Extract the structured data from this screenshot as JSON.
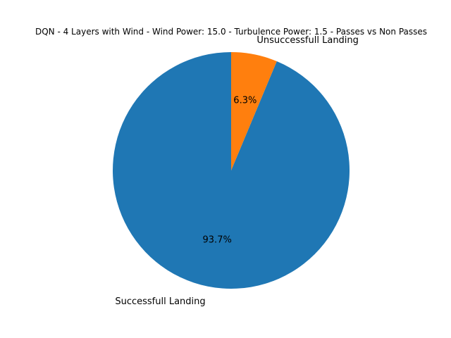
{
  "chart_data": {
    "type": "pie",
    "title": "DQN - 4 Layers with Wind - Wind Power: 15.0 - Turbulence Power: 1.5 - Passes vs Non Passes",
    "categories": [
      "Successfull Landing",
      "Unsuccessfull Landing"
    ],
    "values": [
      93.7,
      6.3
    ],
    "percent_labels": [
      "93.7%",
      "6.3%"
    ],
    "colors": [
      "#1f77b4",
      "#ff7f0e"
    ],
    "start_angle_deg": 90,
    "direction": "counterclockwise",
    "legend": "none"
  }
}
